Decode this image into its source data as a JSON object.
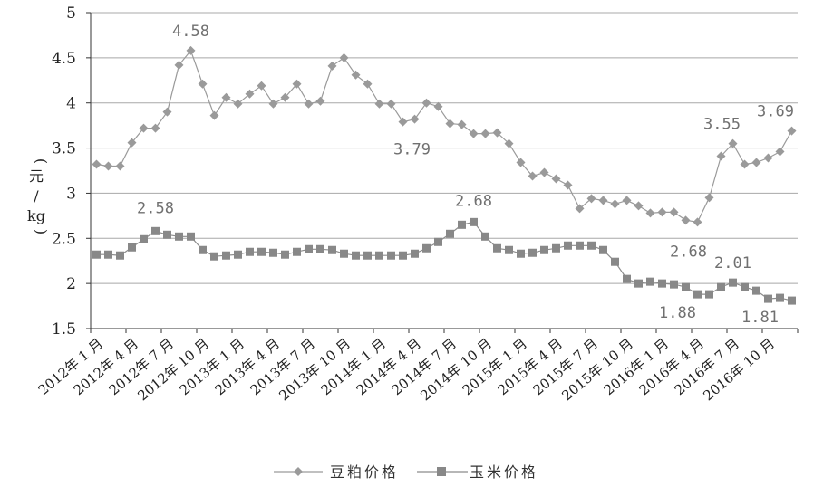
{
  "chart_data": {
    "type": "line",
    "ylabel_chars": [
      "元",
      "/",
      "kg"
    ],
    "ylabel_parens": [
      "(",
      ")"
    ],
    "ylim": [
      1.5,
      5
    ],
    "yticks": [
      "1.5",
      "2",
      "2.5",
      "3",
      "3.5",
      "4",
      "4.5",
      "5"
    ],
    "grid": true,
    "legend_position": "bottom",
    "x_tick_labels": [
      "2012年 1 月",
      "2012年 4 月",
      "2012年 7 月",
      "2012年 10 月",
      "2013年 1 月",
      "2013年 4 月",
      "2013年 7 月",
      "2013年 10 月",
      "2014年 1 月",
      "2014年 4 月",
      "2014年 7 月",
      "2014年 10 月",
      "2015年 1 月",
      "2015年 4 月",
      "2015年 7 月",
      "2015年 10 月",
      "2016年 1 月",
      "2016年 4 月",
      "2016年 7 月",
      "2016年 10 月"
    ],
    "series": [
      {
        "name": "豆粕价格",
        "marker": "diamond",
        "values": [
          3.32,
          3.3,
          3.3,
          3.56,
          3.72,
          3.72,
          3.9,
          4.42,
          4.58,
          4.21,
          3.86,
          4.06,
          3.99,
          4.1,
          4.19,
          3.99,
          4.06,
          4.21,
          3.99,
          4.02,
          4.41,
          4.5,
          4.31,
          4.21,
          3.99,
          3.99,
          3.79,
          3.82,
          4.0,
          3.96,
          3.77,
          3.76,
          3.66,
          3.66,
          3.67,
          3.55,
          3.34,
          3.19,
          3.23,
          3.16,
          3.09,
          2.83,
          2.94,
          2.92,
          2.88,
          2.92,
          2.86,
          2.78,
          2.79,
          2.79,
          2.7,
          2.68,
          2.95,
          3.41,
          3.55,
          3.32,
          3.34,
          3.39,
          3.46,
          3.69
        ]
      },
      {
        "name": "玉米价格",
        "marker": "square",
        "values": [
          2.32,
          2.32,
          2.31,
          2.4,
          2.49,
          2.58,
          2.54,
          2.52,
          2.52,
          2.37,
          2.3,
          2.31,
          2.32,
          2.35,
          2.35,
          2.34,
          2.32,
          2.35,
          2.38,
          2.38,
          2.37,
          2.33,
          2.31,
          2.31,
          2.31,
          2.31,
          2.31,
          2.33,
          2.39,
          2.46,
          2.55,
          2.65,
          2.68,
          2.52,
          2.39,
          2.37,
          2.33,
          2.34,
          2.37,
          2.39,
          2.42,
          2.42,
          2.42,
          2.37,
          2.24,
          2.05,
          2.0,
          2.02,
          2.0,
          1.99,
          1.96,
          1.88,
          1.88,
          1.96,
          2.01,
          1.96,
          1.92,
          1.83,
          1.84,
          1.81
        ]
      }
    ],
    "annotations": [
      {
        "text": "4.58",
        "series": 0,
        "index": 8,
        "dx": 0,
        "dy": -16
      },
      {
        "text": "3.79",
        "series": 0,
        "index": 26,
        "dx": 10,
        "dy": 36
      },
      {
        "text": "3.55",
        "series": 0,
        "index": 54,
        "dx": -12,
        "dy": -16
      },
      {
        "text": "3.69",
        "series": 0,
        "index": 59,
        "dx": -18,
        "dy": -16
      },
      {
        "text": "2.68",
        "series": 0,
        "index": 51,
        "dx": -10,
        "dy": 38
      },
      {
        "text": "2.58",
        "series": 1,
        "index": 5,
        "dx": 0,
        "dy": -20
      },
      {
        "text": "2.68",
        "series": 1,
        "index": 32,
        "dx": 0,
        "dy": -18
      },
      {
        "text": "2.01",
        "series": 1,
        "index": 54,
        "dx": 0,
        "dy": -16
      },
      {
        "text": "1.88",
        "series": 1,
        "index": 51,
        "dx": -22,
        "dy": 26
      },
      {
        "text": "1.81",
        "series": 1,
        "index": 59,
        "dx": -35,
        "dy": 24
      }
    ]
  }
}
